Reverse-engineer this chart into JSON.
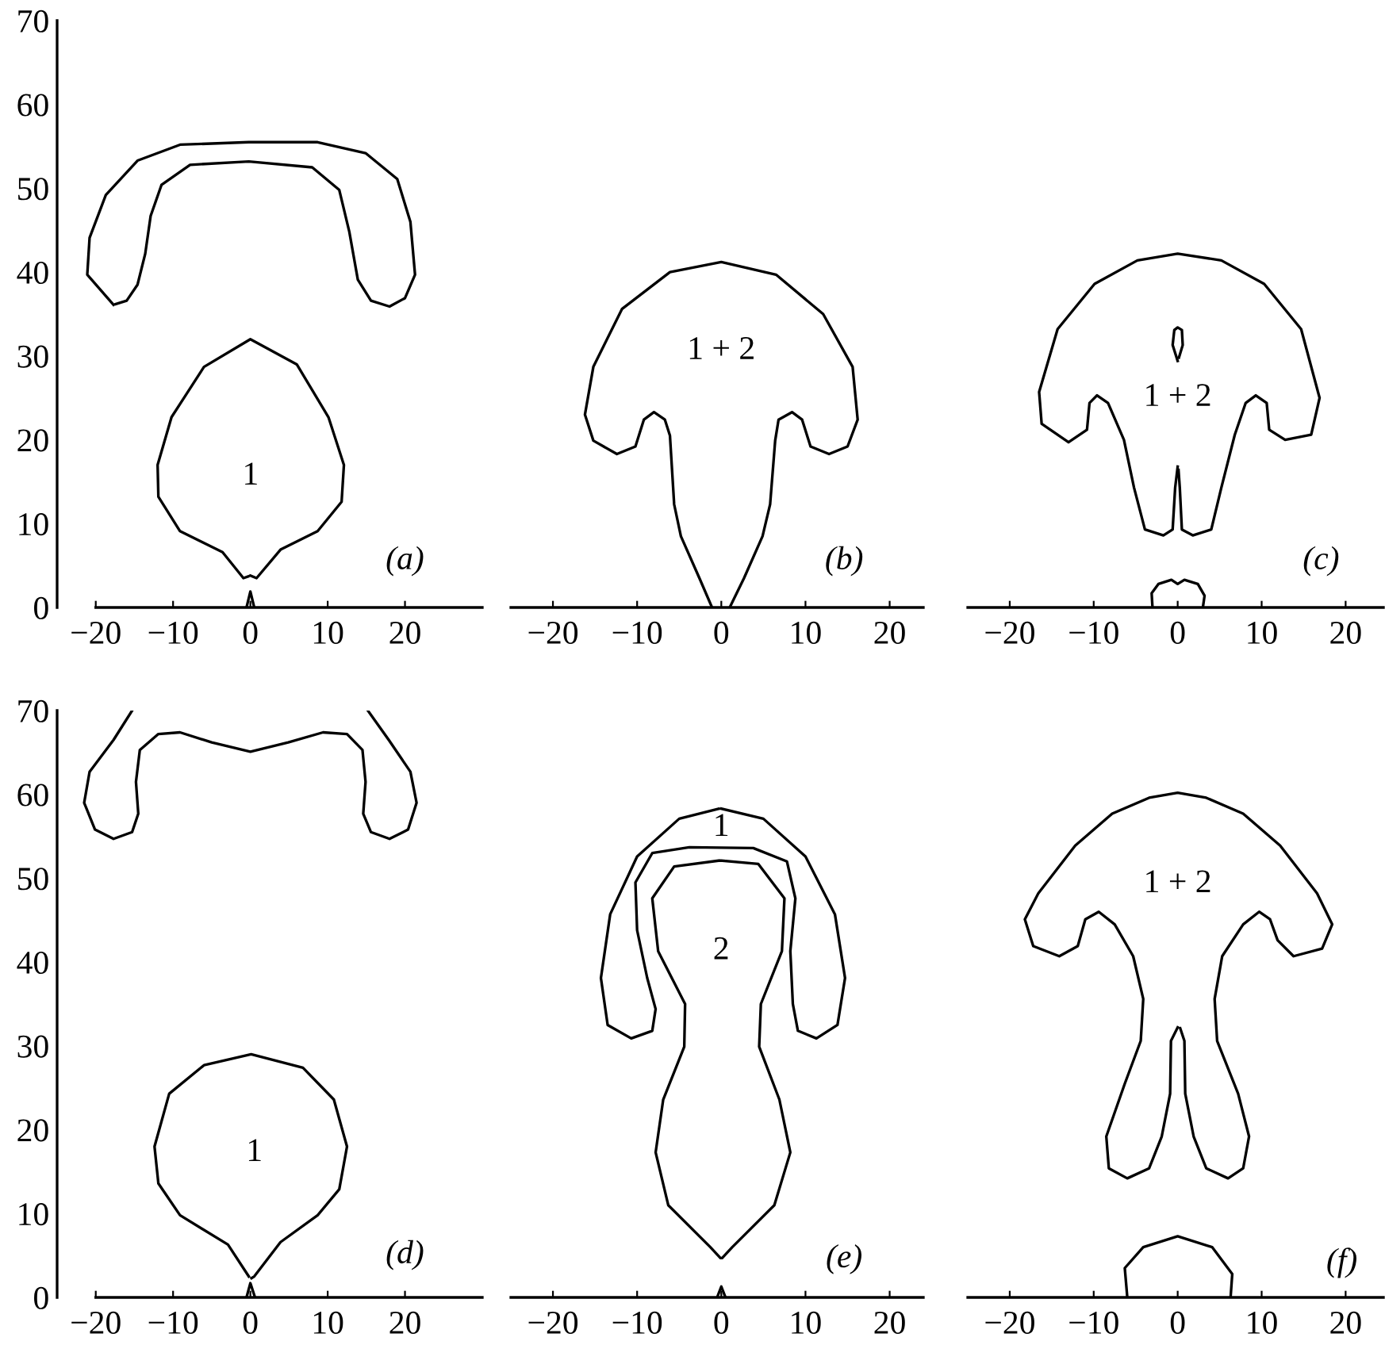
{
  "chart_data": [
    {
      "type": "line",
      "xlim": [
        -25,
        30
      ],
      "ylim": [
        0,
        70
      ],
      "xticks": [
        -20,
        -10,
        0,
        10,
        20
      ],
      "yticks": [
        0,
        10,
        20,
        30,
        40,
        50,
        60,
        70
      ],
      "series": [
        {
          "color": "#000000",
          "x": [
            -17.7,
            -21.1,
            -20.8,
            -18.7,
            -14.6,
            -9.1,
            -0.2,
            8.7,
            14.9,
            19,
            20.7,
            21.3,
            20,
            18,
            15.6,
            13.9,
            12.8,
            11.5,
            8,
            -0.2,
            -7.8,
            -11.5,
            -12.9,
            -13.6,
            -14.6,
            -16,
            -17.4
          ],
          "values": [
            36.1,
            39.7,
            44.1,
            49.2,
            53.3,
            55.2,
            55.5,
            55.5,
            54.2,
            51.1,
            46,
            39.7,
            36.9,
            35.9,
            36.6,
            39.1,
            44.8,
            49.8,
            52.5,
            53.2,
            52.8,
            50.4,
            46.7,
            42.2,
            38.5,
            36.6,
            36.2
          ]
        },
        {
          "color": "#000000",
          "x": [
            0,
            0.8,
            3.9,
            8.7,
            11.8,
            12.1,
            10.1,
            6,
            0,
            -6,
            -10.2,
            -12,
            -11.9,
            -9.1,
            -3.6,
            -0.9,
            -0.3
          ],
          "values": [
            3.8,
            3.5,
            6.9,
            9.1,
            12.6,
            17,
            22.7,
            29,
            32,
            28.7,
            22.7,
            17,
            13.2,
            9.1,
            6.6,
            3.5,
            3.7
          ]
        },
        {
          "color": "#000000",
          "x": [
            -0.5,
            0,
            0.5
          ],
          "values": [
            0,
            1.9,
            0
          ]
        }
      ],
      "annotations": [
        "1",
        "(a)"
      ]
    },
    {
      "type": "line",
      "xlim": [
        -25,
        24
      ],
      "ylim": [
        0,
        70
      ],
      "xticks": [
        -20,
        -10,
        0,
        10,
        20
      ],
      "tick_labels": "x",
      "series": [
        {
          "color": "#000000",
          "x": [
            -1.1,
            -2.6,
            -4.8,
            -5.6,
            -6.1,
            -6.7,
            -8,
            -9.2,
            -10.2,
            -12.4,
            -15.2,
            -16.2,
            -15.2,
            -11.8,
            -6.1,
            0,
            6.5,
            12.1,
            15.6,
            16.2,
            15,
            12.8,
            10.6,
            9.6,
            8.4,
            6.8,
            6.4,
            5.8,
            4.9,
            2.7,
            1
          ],
          "values": [
            0,
            3.5,
            8.5,
            12.3,
            20.5,
            22.4,
            23.3,
            22.4,
            19.2,
            18.3,
            19.9,
            23,
            28.7,
            35.6,
            40,
            41.2,
            39.7,
            35,
            28.7,
            22.4,
            19.2,
            18.3,
            19.2,
            22.4,
            23.3,
            22.4,
            19.9,
            12.3,
            8.5,
            3.5,
            0
          ]
        }
      ],
      "annotations": [
        "1 + 2",
        "(b)"
      ]
    },
    {
      "type": "line",
      "xlim": [
        -25,
        24.5
      ],
      "ylim": [
        0,
        70
      ],
      "xticks": [
        -20,
        -10,
        0,
        10,
        20
      ],
      "tick_labels": "x",
      "series": [
        {
          "color": "#000000",
          "x": [
            0,
            -0.3,
            -0.6,
            -1.7,
            -3.9,
            -5.2,
            -6.4,
            -8.3,
            -9.6,
            -10.5,
            -10.8,
            -13,
            -16.2,
            -16.5,
            -14.3,
            -9.9,
            -4.8,
            0,
            5.2,
            10.3,
            14.7,
            16.9,
            15.9,
            12.8,
            10.9,
            10.6,
            9.3,
            8.1,
            6.8,
            5.2,
            4,
            1.8,
            0.5,
            0.25,
            0.1
          ],
          "values": [
            16.8,
            14.3,
            9.3,
            8.6,
            9.3,
            14.3,
            20,
            24.4,
            25.3,
            24.4,
            21.2,
            19.7,
            21.9,
            25.7,
            33.2,
            38.6,
            41.4,
            42.2,
            41.4,
            38.6,
            33.2,
            25,
            20.6,
            20,
            21.2,
            24.4,
            25.3,
            24.4,
            20.6,
            14.3,
            9.3,
            8.6,
            9.3,
            14.3,
            16.4
          ]
        },
        {
          "color": "#000000",
          "x": [
            0,
            -0.6,
            -0.4,
            0,
            0.5,
            0.6,
            0.15
          ],
          "values": [
            29.4,
            31.3,
            33.1,
            33.4,
            33.1,
            31.3,
            29.8
          ]
        },
        {
          "color": "#000000",
          "x": [
            -3,
            -3.1,
            -2.3,
            -0.75,
            0,
            0.8,
            2.4,
            3.2,
            3
          ],
          "values": [
            0,
            1.7,
            2.8,
            3.3,
            2.8,
            3.3,
            2.8,
            1.4,
            0
          ]
        }
      ],
      "annotations": [
        "1 + 2",
        "(c)"
      ]
    },
    {
      "type": "line",
      "xlim": [
        -25,
        30
      ],
      "ylim": [
        0,
        70
      ],
      "xticks": [
        -20,
        -10,
        0,
        10,
        20
      ],
      "yticks": [
        0,
        10,
        20,
        30,
        40,
        50,
        60,
        70
      ],
      "series": [
        {
          "color": "#000000",
          "x": [
            -15.3,
            -17.7,
            -20.8,
            -21.5,
            -20.1,
            -17.7,
            -15.3,
            -14.5,
            -14.8,
            -14.3,
            -11.9,
            -9.1,
            -5,
            0,
            4.9,
            9.4,
            12.5,
            14.5,
            14.9,
            14.6,
            15.6,
            18,
            20.4,
            21.5,
            20.7,
            17.9,
            15.2
          ],
          "values": [
            70,
            66.5,
            62.7,
            59,
            55.8,
            54.7,
            55.5,
            57.7,
            61.5,
            65.3,
            67.2,
            67.4,
            66.2,
            65.1,
            66.2,
            67.4,
            67.2,
            65.3,
            61.5,
            57.7,
            55.5,
            54.7,
            55.8,
            59,
            62.7,
            66.5,
            70
          ]
        },
        {
          "color": "#000000",
          "x": [
            0.15,
            0.5,
            3.9,
            8.7,
            11.5,
            12.5,
            10.8,
            6.8,
            0.1,
            -6,
            -10.5,
            -12.4,
            -11.9,
            -9.1,
            -2.9,
            -0.2
          ],
          "values": [
            2.3,
            2.5,
            6.6,
            9.8,
            12.9,
            18,
            23.6,
            27.4,
            29,
            27.7,
            24.3,
            18,
            13.6,
            9.8,
            6.3,
            2.5
          ]
        },
        {
          "color": "#000000",
          "x": [
            -0.5,
            0,
            0.6
          ],
          "values": [
            0,
            1.7,
            0
          ]
        }
      ],
      "annotations": [
        "1",
        "(d)"
      ]
    },
    {
      "type": "line",
      "xlim": [
        -25,
        24
      ],
      "ylim": [
        0,
        70
      ],
      "xticks": [
        -20,
        -10,
        0,
        10,
        20
      ],
      "tick_labels": "x",
      "series": [
        {
          "color": "#000000",
          "x": [
            0,
            5,
            10,
            13.5,
            14.7,
            13.8,
            11.3,
            9.1,
            8.5,
            8.2,
            8.8,
            7.8,
            3.8,
            -3.8,
            -8.2,
            -10.2,
            -10,
            -8.8,
            -7.8,
            -8.2,
            -10.7,
            -13.5,
            -14.3,
            -13.2,
            -10,
            -5,
            -0.3
          ],
          "values": [
            58.3,
            57.1,
            52.6,
            45.7,
            38.1,
            32.5,
            30.9,
            31.8,
            35,
            41.3,
            47.6,
            52,
            53.6,
            53.7,
            53,
            49.5,
            43.8,
            38.1,
            34.4,
            31.8,
            30.9,
            32.5,
            38.1,
            45.7,
            52.6,
            57.1,
            58.3
          ]
        },
        {
          "color": "#000000",
          "x": [
            0,
            4.4,
            7.5,
            7.2,
            4.7,
            4.5,
            6.9,
            8.2,
            6.3,
            1.3,
            0.1,
            -0.1,
            -1.3,
            -6.3,
            -7.8,
            -6.9,
            -4.4,
            -4.3,
            -7.5,
            -8.2,
            -5.6,
            -0.3
          ],
          "values": [
            52.1,
            51.7,
            47.6,
            41.3,
            35,
            29.9,
            23.6,
            17.3,
            11,
            6,
            4.7,
            4.7,
            6,
            11,
            17.3,
            23.6,
            29.9,
            35,
            41.3,
            47.6,
            51.4,
            52.1
          ]
        },
        {
          "color": "#000000",
          "x": [
            -0.5,
            0,
            0.5
          ],
          "values": [
            0,
            1.3,
            0
          ]
        }
      ],
      "annotations": [
        "1",
        "2",
        "(e)"
      ]
    },
    {
      "type": "line",
      "xlim": [
        -25,
        24.5
      ],
      "ylim": [
        0,
        70
      ],
      "xticks": [
        -20,
        -10,
        0,
        10,
        20
      ],
      "tick_labels": "x",
      "series": [
        {
          "color": "#000000",
          "x": [
            0,
            -0.8,
            -0.9,
            -1.9,
            -3.4,
            -6,
            -8.2,
            -8.5,
            -6.3,
            -4.4,
            -4.1,
            -5.3,
            -7.5,
            -9.4,
            -11,
            -11.9,
            -14.1,
            -17.2,
            -18.2,
            -16.6,
            -12.2,
            -7.8,
            -3.4,
            0,
            3.4,
            7.8,
            12.2,
            16.6,
            18.4,
            17.2,
            13.8,
            11.9,
            11,
            9.7,
            7.8,
            5.3,
            4.4,
            4.7,
            7.2,
            8.5,
            7.8,
            6,
            3.4,
            1.9,
            0.9,
            0.8,
            0.3
          ],
          "values": [
            32.2,
            30.6,
            24.3,
            19.2,
            15.4,
            14.2,
            15.4,
            19.2,
            25.5,
            30.6,
            35.6,
            40.7,
            44.5,
            46,
            45.1,
            41.9,
            40.7,
            41.9,
            45.1,
            48.2,
            53.9,
            57.7,
            59.6,
            60.2,
            59.6,
            57.7,
            53.9,
            48.2,
            44.5,
            41.6,
            40.7,
            42.6,
            45.1,
            46,
            44.5,
            40.7,
            35.6,
            30.6,
            24.3,
            19.2,
            15.4,
            14.2,
            15.4,
            19.2,
            24.3,
            30.6,
            32.1
          ]
        },
        {
          "color": "#000000",
          "x": [
            -6,
            -6.3,
            -4.1,
            0,
            4.1,
            6.5,
            6.3
          ],
          "values": [
            0,
            3.5,
            6,
            7.3,
            6,
            2.8,
            0
          ]
        }
      ],
      "annotations": [
        "1 + 2",
        "(f)"
      ]
    }
  ]
}
